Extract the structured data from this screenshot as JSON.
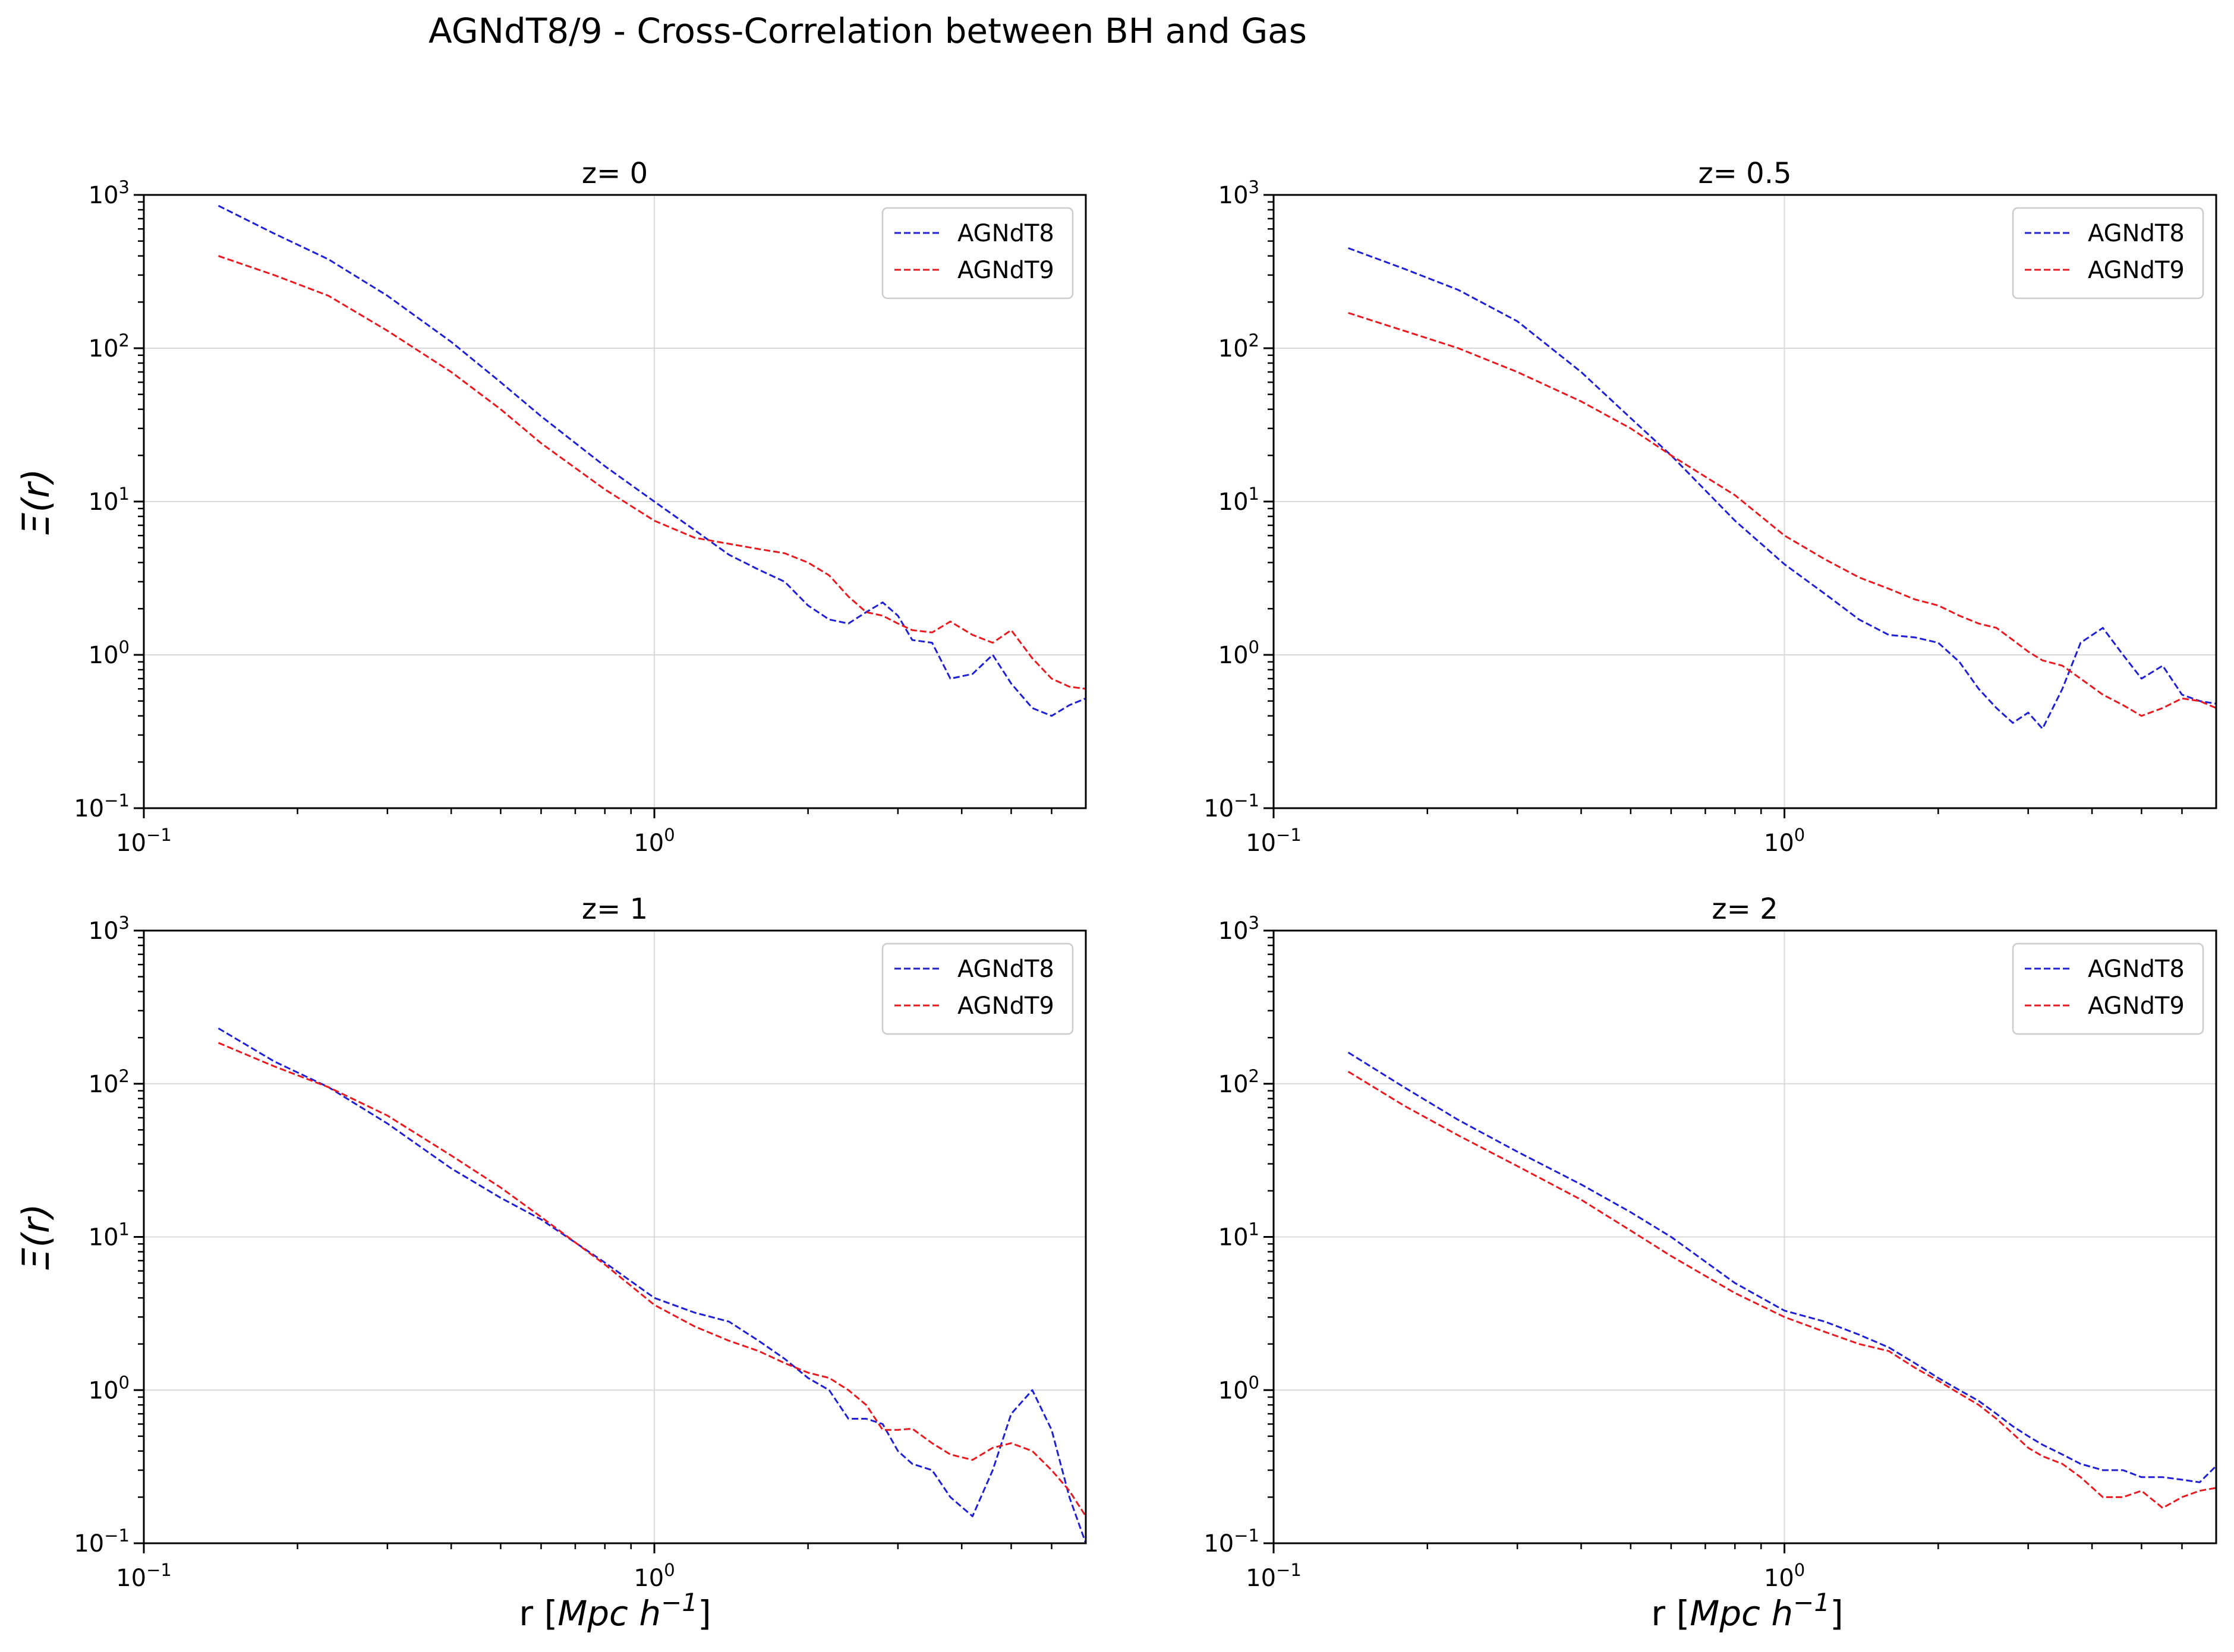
{
  "figure": {
    "title": "AGNdT8/9 - Cross-Correlation between BH and Gas",
    "ylabel": "Ξ(r)",
    "xlabel": "r [Mpc h⁻¹]"
  },
  "colors": {
    "AGNdT8": "#1f1fd6",
    "AGNdT9": "#e8191f",
    "grid": "#d9d9d9"
  },
  "chart_data": [
    {
      "type": "line",
      "title": "z= 0",
      "xscale": "log",
      "yscale": "log",
      "xlim": [
        0.1,
        7.0
      ],
      "ylim": [
        0.1,
        1000
      ],
      "grid": true,
      "legend": "top-right",
      "series": [
        {
          "name": "AGNdT8",
          "x": [
            0.14,
            0.18,
            0.23,
            0.3,
            0.4,
            0.5,
            0.6,
            0.8,
            1.0,
            1.2,
            1.4,
            1.6,
            1.8,
            2.0,
            2.2,
            2.4,
            2.6,
            2.8,
            3.0,
            3.2,
            3.5,
            3.8,
            4.2,
            4.6,
            5.0,
            5.5,
            6.0,
            6.5,
            7.0
          ],
          "y": [
            850,
            560,
            380,
            220,
            110,
            60,
            36,
            17,
            10,
            6.5,
            4.5,
            3.6,
            3.0,
            2.1,
            1.7,
            1.6,
            1.9,
            2.2,
            1.8,
            1.25,
            1.2,
            0.7,
            0.75,
            1.0,
            0.65,
            0.45,
            0.4,
            0.47,
            0.52
          ]
        },
        {
          "name": "AGNdT9",
          "x": [
            0.14,
            0.18,
            0.23,
            0.3,
            0.4,
            0.5,
            0.6,
            0.8,
            1.0,
            1.2,
            1.4,
            1.6,
            1.8,
            2.0,
            2.2,
            2.4,
            2.6,
            2.8,
            3.0,
            3.2,
            3.5,
            3.8,
            4.2,
            4.6,
            5.0,
            5.5,
            6.0,
            6.5,
            7.0
          ],
          "y": [
            400,
            300,
            220,
            130,
            70,
            40,
            24,
            12,
            7.5,
            5.8,
            5.3,
            4.9,
            4.6,
            4.0,
            3.3,
            2.4,
            1.9,
            1.8,
            1.6,
            1.45,
            1.4,
            1.65,
            1.35,
            1.2,
            1.45,
            0.95,
            0.7,
            0.62,
            0.6
          ]
        }
      ]
    },
    {
      "type": "line",
      "title": "z= 0.5",
      "xscale": "log",
      "yscale": "log",
      "xlim": [
        0.1,
        7.0
      ],
      "ylim": [
        0.1,
        1000
      ],
      "grid": true,
      "legend": "top-right",
      "series": [
        {
          "name": "AGNdT8",
          "x": [
            0.14,
            0.18,
            0.23,
            0.3,
            0.4,
            0.5,
            0.6,
            0.8,
            1.0,
            1.2,
            1.4,
            1.6,
            1.8,
            2.0,
            2.2,
            2.4,
            2.6,
            2.8,
            3.0,
            3.2,
            3.5,
            3.8,
            4.2,
            4.6,
            5.0,
            5.5,
            6.0,
            6.5,
            7.0
          ],
          "y": [
            450,
            330,
            240,
            150,
            70,
            35,
            20,
            7.5,
            3.9,
            2.5,
            1.7,
            1.35,
            1.3,
            1.2,
            0.9,
            0.6,
            0.45,
            0.36,
            0.42,
            0.33,
            0.6,
            1.2,
            1.5,
            1.0,
            0.7,
            0.85,
            0.55,
            0.5,
            0.48
          ]
        },
        {
          "name": "AGNdT9",
          "x": [
            0.14,
            0.18,
            0.23,
            0.3,
            0.4,
            0.5,
            0.6,
            0.8,
            1.0,
            1.2,
            1.4,
            1.6,
            1.8,
            2.0,
            2.2,
            2.4,
            2.6,
            2.8,
            3.0,
            3.2,
            3.5,
            3.8,
            4.2,
            4.6,
            5.0,
            5.5,
            6.0,
            6.5,
            7.0
          ],
          "y": [
            170,
            130,
            100,
            70,
            45,
            30,
            20,
            11,
            6.0,
            4.2,
            3.2,
            2.7,
            2.3,
            2.1,
            1.8,
            1.6,
            1.5,
            1.25,
            1.05,
            0.92,
            0.85,
            0.7,
            0.55,
            0.47,
            0.4,
            0.45,
            0.52,
            0.5,
            0.45
          ]
        }
      ]
    },
    {
      "type": "line",
      "title": "z= 1",
      "xscale": "log",
      "yscale": "log",
      "xlim": [
        0.1,
        7.0
      ],
      "ylim": [
        0.1,
        1000
      ],
      "grid": true,
      "legend": "top-right",
      "series": [
        {
          "name": "AGNdT8",
          "x": [
            0.14,
            0.18,
            0.23,
            0.3,
            0.4,
            0.5,
            0.6,
            0.8,
            1.0,
            1.2,
            1.4,
            1.6,
            1.8,
            2.0,
            2.2,
            2.4,
            2.6,
            2.8,
            3.0,
            3.2,
            3.5,
            3.8,
            4.2,
            4.6,
            5.0,
            5.5,
            6.0,
            6.5,
            7.0
          ],
          "y": [
            230,
            140,
            95,
            55,
            28,
            18,
            13,
            6.8,
            4.0,
            3.2,
            2.8,
            2.1,
            1.6,
            1.2,
            1.0,
            0.65,
            0.65,
            0.6,
            0.4,
            0.33,
            0.3,
            0.2,
            0.15,
            0.3,
            0.7,
            1.0,
            0.55,
            0.2,
            0.1
          ]
        },
        {
          "name": "AGNdT9",
          "x": [
            0.14,
            0.18,
            0.23,
            0.3,
            0.4,
            0.5,
            0.6,
            0.8,
            1.0,
            1.2,
            1.4,
            1.6,
            1.8,
            2.0,
            2.2,
            2.4,
            2.6,
            2.8,
            3.0,
            3.2,
            3.5,
            3.8,
            4.2,
            4.6,
            5.0,
            5.5,
            6.0,
            6.5,
            7.0
          ],
          "y": [
            185,
            130,
            95,
            62,
            34,
            21,
            13.5,
            6.6,
            3.6,
            2.6,
            2.1,
            1.8,
            1.5,
            1.3,
            1.2,
            1.0,
            0.8,
            0.55,
            0.55,
            0.56,
            0.45,
            0.38,
            0.35,
            0.42,
            0.45,
            0.4,
            0.3,
            0.22,
            0.15
          ]
        }
      ]
    },
    {
      "type": "line",
      "title": "z= 2",
      "xscale": "log",
      "yscale": "log",
      "xlim": [
        0.1,
        7.0
      ],
      "ylim": [
        0.1,
        1000
      ],
      "grid": true,
      "legend": "top-right",
      "series": [
        {
          "name": "AGNdT8",
          "x": [
            0.14,
            0.18,
            0.23,
            0.3,
            0.4,
            0.5,
            0.6,
            0.8,
            1.0,
            1.2,
            1.4,
            1.6,
            1.8,
            2.0,
            2.2,
            2.4,
            2.6,
            2.8,
            3.0,
            3.2,
            3.5,
            3.8,
            4.2,
            4.6,
            5.0,
            5.5,
            6.0,
            6.5,
            7.0
          ],
          "y": [
            160,
            95,
            58,
            36,
            22,
            14.5,
            10,
            5.0,
            3.3,
            2.8,
            2.3,
            1.9,
            1.5,
            1.2,
            1.0,
            0.85,
            0.7,
            0.58,
            0.5,
            0.44,
            0.38,
            0.33,
            0.3,
            0.3,
            0.27,
            0.27,
            0.26,
            0.25,
            0.32
          ]
        },
        {
          "name": "AGNdT9",
          "x": [
            0.14,
            0.18,
            0.23,
            0.3,
            0.4,
            0.5,
            0.6,
            0.8,
            1.0,
            1.2,
            1.4,
            1.6,
            1.8,
            2.0,
            2.2,
            2.4,
            2.6,
            2.8,
            3.0,
            3.2,
            3.5,
            3.8,
            4.2,
            4.6,
            5.0,
            5.5,
            6.0,
            6.5,
            7.0
          ],
          "y": [
            120,
            72,
            46,
            29,
            17.5,
            11,
            7.5,
            4.3,
            3.0,
            2.4,
            2.0,
            1.8,
            1.4,
            1.15,
            0.95,
            0.8,
            0.65,
            0.52,
            0.42,
            0.37,
            0.33,
            0.27,
            0.2,
            0.2,
            0.22,
            0.17,
            0.2,
            0.22,
            0.23
          ]
        }
      ]
    }
  ]
}
